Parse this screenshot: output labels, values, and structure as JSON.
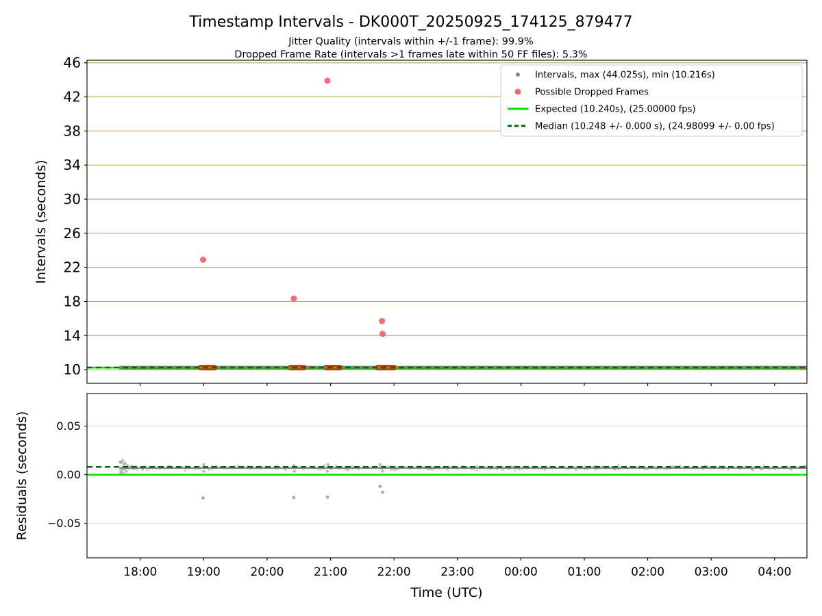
{
  "figure": {
    "title": "Timestamp Intervals - DK000T_20250925_174125_879477",
    "subtitle_jitter": "Jitter Quality (intervals within +/-1 frame): 99.9%",
    "subtitle_dropped": "Dropped Frame Rate (intervals >1 frames late within 50 FF files): 5.3%",
    "background": "#ffffff"
  },
  "chart_data": [
    {
      "type": "scatter",
      "name": "intervals-vs-time",
      "title": "Timestamp Intervals - DK000T_20250925_174125_879477",
      "ylabel": "Intervals (seconds)",
      "xlabel": "",
      "xlim_hours": [
        17.16,
        28.51
      ],
      "ylim": [
        8.4,
        46.3
      ],
      "yticks": [
        10,
        14,
        18,
        22,
        26,
        30,
        34,
        38,
        42,
        46
      ],
      "grid": true,
      "grid_color": "#c6ad62",
      "legend_position": "upper right",
      "legend": [
        {
          "marker": "dot",
          "size": 3,
          "color": "#8a8a8a",
          "label": "Intervals, max (44.025s), min (10.216s)"
        },
        {
          "marker": "dot",
          "size": 4.5,
          "color": "#ee6a72",
          "label": "Possible Dropped Frames"
        },
        {
          "marker": "line",
          "color": "#00e400",
          "label": "Expected (10.240s), (25.00000 fps)"
        },
        {
          "marker": "dashed-line",
          "color": "#006400",
          "label": "Median (10.248 +/- 0.000 s), (24.98099 +/- 0.00 fps)"
        }
      ],
      "stats": {
        "max_s": 44.025,
        "min_s": 10.216,
        "expected_s": 10.24,
        "expected_fps": 25.0,
        "median_s": 10.248,
        "median_fps": 24.98099,
        "jitter_quality_pct": 99.9,
        "dropped_frame_rate_pct": 5.3
      },
      "series": [
        {
          "name": "intervals",
          "kind": "band",
          "x_start": 17.67,
          "x_end": 28.51,
          "y": 10.24,
          "y_spread": 0.15,
          "color": "#696969",
          "line_width": 5,
          "fuzz_color": "#8a8a8a",
          "fuzz_r": 1.6,
          "n_fuzz": 230
        },
        {
          "name": "dropped-frame-clusters",
          "kind": "segments",
          "y": 10.24,
          "color": "#fb0f0f",
          "thickness": 8,
          "segments": [
            [
              18.95,
              19.17
            ],
            [
              20.37,
              20.58
            ],
            [
              20.93,
              21.15
            ],
            [
              21.74,
              22.0
            ]
          ]
        },
        {
          "name": "dropped-frame-outliers",
          "kind": "points",
          "color": "#f2545e",
          "alpha": 0.85,
          "size": 4.5,
          "points": [
            [
              18.99,
              22.9
            ],
            [
              20.42,
              18.35
            ],
            [
              20.95,
              43.9
            ],
            [
              21.81,
              15.7
            ],
            [
              21.82,
              14.2
            ]
          ]
        },
        {
          "name": "expected-line",
          "kind": "hline",
          "y": 10.24,
          "color": "#00e400",
          "width": 2.6
        },
        {
          "name": "median-line",
          "kind": "hline",
          "y": 10.248,
          "color": "#006400",
          "width": 2.4,
          "dash": "8 5"
        }
      ]
    },
    {
      "type": "scatter",
      "name": "residuals-vs-time",
      "ylabel": "Residuals (seconds)",
      "xlabel": "Time (UTC)",
      "xlim_hours": [
        17.16,
        28.51
      ],
      "ylim": [
        -0.0855,
        0.0835
      ],
      "yticks": [
        0.05,
        0,
        -0.05
      ],
      "ytick_labels": [
        "0.05",
        "0.00",
        "−0.05"
      ],
      "grid": true,
      "grid_color": "#dcdcdc",
      "xticks": [
        {
          "h": 18,
          "label": "18:00"
        },
        {
          "h": 19,
          "label": "19:00"
        },
        {
          "h": 20,
          "label": "20:00"
        },
        {
          "h": 21,
          "label": "21:00"
        },
        {
          "h": 22,
          "label": "22:00"
        },
        {
          "h": 23,
          "label": "23:00"
        },
        {
          "h": 24,
          "label": "00:00"
        },
        {
          "h": 25,
          "label": "01:00"
        },
        {
          "h": 26,
          "label": "02:00"
        },
        {
          "h": 27,
          "label": "03:00"
        },
        {
          "h": 28,
          "label": "04:00"
        }
      ],
      "series": [
        {
          "name": "residuals",
          "kind": "band",
          "x_start": 17.67,
          "x_end": 28.51,
          "y": 0.007,
          "y_spread": 0.0032,
          "color": "#7a7a7a",
          "line_width": 2.4,
          "fuzz_color": "#8c8c8c",
          "fuzz_r": 1.9,
          "n_fuzz": 260
        },
        {
          "name": "start-cluster",
          "kind": "points",
          "color": "#8c8c8c",
          "alpha": 0.6,
          "size": 2.2,
          "points": [
            [
              17.68,
              0.013
            ],
            [
              17.69,
              0.0025
            ],
            [
              17.7,
              0.0125
            ],
            [
              17.71,
              0.0045
            ],
            [
              17.72,
              0.0145
            ],
            [
              17.73,
              0.0015
            ],
            [
              17.74,
              0.0105
            ],
            [
              17.75,
              0.006
            ],
            [
              17.76,
              0.012
            ],
            [
              17.78,
              0.0035
            ],
            [
              17.8,
              0.0095
            ],
            [
              17.83,
              0.007
            ],
            [
              17.86,
              0.0085
            ],
            [
              17.9,
              0.0065
            ]
          ]
        },
        {
          "name": "event-spread",
          "kind": "points",
          "color": "#8c8c8c",
          "alpha": 0.6,
          "size": 2.2,
          "points": [
            [
              19.0,
              0.0035
            ],
            [
              19.0,
              0.0105
            ],
            [
              20.42,
              0.0095
            ],
            [
              20.43,
              0.0035
            ],
            [
              20.95,
              0.0035
            ],
            [
              20.96,
              0.0105
            ],
            [
              21.78,
              0.0105
            ],
            [
              21.82,
              0.0035
            ]
          ]
        },
        {
          "name": "residual-outliers",
          "kind": "points",
          "color": "#8c8c8c",
          "alpha": 0.75,
          "size": 2.4,
          "points": [
            [
              18.99,
              -0.024
            ],
            [
              20.42,
              -0.0235
            ],
            [
              20.95,
              -0.023
            ],
            [
              21.78,
              -0.012
            ],
            [
              21.82,
              -0.018
            ]
          ]
        },
        {
          "name": "zero-line",
          "kind": "hline",
          "y": 0,
          "color": "#00e400",
          "width": 2.6
        },
        {
          "name": "median-residual-line",
          "kind": "hline",
          "y": 0.008,
          "color": "#006400",
          "width": 2.4,
          "dash": "8 5"
        }
      ]
    }
  ]
}
